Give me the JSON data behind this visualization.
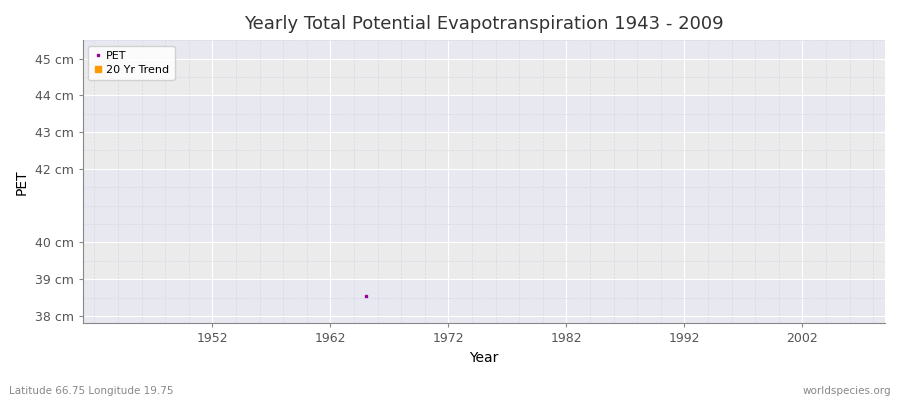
{
  "title": "Yearly Total Potential Evapotranspiration 1943 - 2009",
  "xlabel": "Year",
  "ylabel": "PET",
  "background_color": "#ffffff",
  "plot_bg_color": "#ebebeb",
  "ylim": [
    37.8,
    45.5
  ],
  "xlim": [
    1941,
    2009
  ],
  "yticks": [
    38,
    39,
    40,
    42,
    43,
    44,
    45
  ],
  "ytick_labels": [
    "38 cm",
    "39 cm",
    "40 cm",
    "42 cm",
    "43 cm",
    "44 cm",
    "45 cm"
  ],
  "xticks": [
    1952,
    1962,
    1972,
    1982,
    1992,
    2002
  ],
  "pet_color": "#990099",
  "trend_color": "#ff9900",
  "data_point_x": 1965,
  "data_point_y": 38.55,
  "data_point_marker": "s",
  "data_point_size": 2,
  "legend_labels": [
    "PET",
    "20 Yr Trend"
  ],
  "subtitle_left": "Latitude 66.75 Longitude 19.75",
  "subtitle_right": "worldspecies.org",
  "title_fontsize": 13,
  "axis_label_fontsize": 10,
  "tick_fontsize": 9,
  "grid_major_color": "#ffffff",
  "grid_minor_color": "#d8d8e8",
  "band_color_odd": "#e8e8f0",
  "band_color_even": "#ebebeb"
}
